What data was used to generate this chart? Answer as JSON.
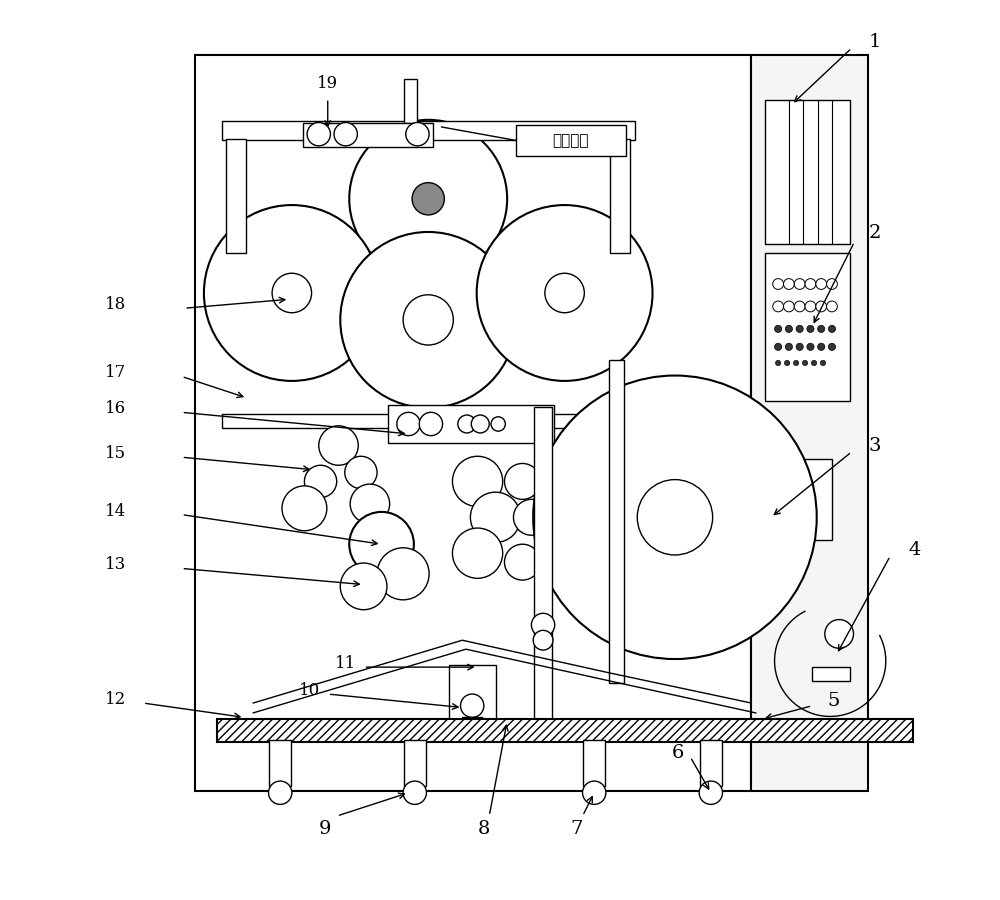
{
  "bg_color": "#ffffff",
  "line_color": "#000000",
  "fig_width": 10.0,
  "fig_height": 9.0,
  "chinese_label": "边料废膜"
}
